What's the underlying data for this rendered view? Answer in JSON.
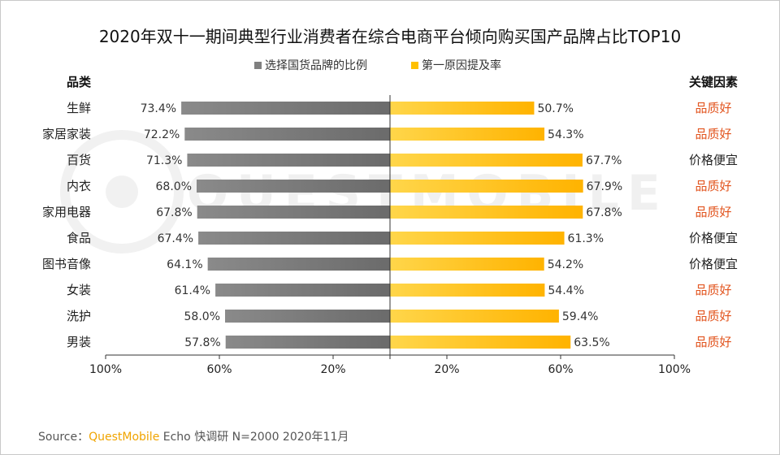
{
  "watermark": "QUESTMOBILE",
  "colors": {
    "left_dark": "#8a8a8a",
    "left_light": "#6b6b6b",
    "right_light": "#ffd64a",
    "right_dark": "#ffb300",
    "legend_gray": "#808080",
    "legend_yellow": "#ffc000",
    "factor_quality": "#e2541e",
    "factor_price": "#222222",
    "axis": "#333333"
  },
  "chart_data": {
    "type": "bar",
    "title": "2020年双十一期间典型行业消费者在综合电商平台倾向购买国产品牌占比TOP10",
    "left_header": "品类",
    "right_header": "关键因素",
    "series": [
      {
        "name": "选择国货品牌的比例",
        "side": "left",
        "values": [
          73.4,
          72.2,
          71.3,
          68.0,
          67.8,
          67.4,
          64.1,
          61.4,
          58.0,
          57.8
        ]
      },
      {
        "name": "第一原因提及率",
        "side": "right",
        "values": [
          50.7,
          54.3,
          67.7,
          67.9,
          67.8,
          61.3,
          54.2,
          54.4,
          59.4,
          63.5
        ]
      }
    ],
    "value_labels_left": [
      "73.4%",
      "72.2%",
      "71.3%",
      "68.0%",
      "67.8%",
      "67.4%",
      "64.1%",
      "61.4%",
      "58.0%",
      "57.8%"
    ],
    "value_labels_right": [
      "50.7%",
      "54.3%",
      "67.7%",
      "67.9%",
      "67.8%",
      "61.3%",
      "54.2%",
      "54.4%",
      "59.4%",
      "63.5%"
    ],
    "categories": [
      "生鲜",
      "家居家装",
      "百货",
      "内衣",
      "家用电器",
      "食品",
      "图书音像",
      "女装",
      "洗护",
      "男装"
    ],
    "factors": [
      "品质好",
      "品质好",
      "价格便宜",
      "品质好",
      "品质好",
      "价格便宜",
      "价格便宜",
      "品质好",
      "品质好",
      "品质好"
    ],
    "factor_highlight": "品质好",
    "xaxis": {
      "tick_values_left": [
        100,
        60,
        20
      ],
      "tick_values_right": [
        20,
        60,
        100
      ],
      "tick_labels_left": [
        "100%",
        "60%",
        "20%"
      ],
      "tick_labels_right": [
        "20%",
        "60%",
        "100%"
      ]
    },
    "xlim": [
      0,
      100
    ],
    "grid": false,
    "legend_position": "top-center"
  },
  "footer": {
    "source_prefix": "Source：",
    "source_brand": "QuestMobile",
    "source_rest": " Echo 快调研 N=2000  2020年11月"
  }
}
